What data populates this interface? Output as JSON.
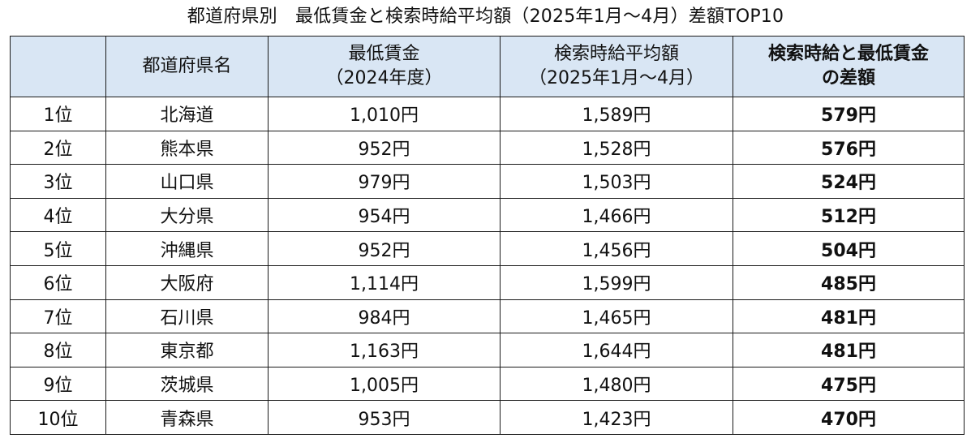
{
  "title": "都道府県別　最低賃金と検索時給平均額（2025年1月～4月）差額TOP10",
  "header": {
    "rank": "",
    "prefecture": "都道府県名",
    "min_wage_line1": "最低賃金",
    "min_wage_line2": "（2024年度）",
    "search_line1": "検索時給平均額",
    "search_line2": "（2025年1月～4月）",
    "diff_line1": "検索時給と最低賃金",
    "diff_line2": "の差額"
  },
  "rows": [
    {
      "rank": "1位",
      "prefecture": "北海道",
      "min_wage": "1,010円",
      "search_wage": "1,589円",
      "diff": "579円"
    },
    {
      "rank": "2位",
      "prefecture": "熊本県",
      "min_wage": "952円",
      "search_wage": "1,528円",
      "diff": "576円"
    },
    {
      "rank": "3位",
      "prefecture": "山口県",
      "min_wage": "979円",
      "search_wage": "1,503円",
      "diff": "524円"
    },
    {
      "rank": "4位",
      "prefecture": "大分県",
      "min_wage": "954円",
      "search_wage": "1,466円",
      "diff": "512円"
    },
    {
      "rank": "5位",
      "prefecture": "沖縄県",
      "min_wage": "952円",
      "search_wage": "1,456円",
      "diff": "504円"
    },
    {
      "rank": "6位",
      "prefecture": "大阪府",
      "min_wage": "1,114円",
      "search_wage": "1,599円",
      "diff": "485円"
    },
    {
      "rank": "7位",
      "prefecture": "石川県",
      "min_wage": "984円",
      "search_wage": "1,465円",
      "diff": "481円"
    },
    {
      "rank": "8位",
      "prefecture": "東京都",
      "min_wage": "1,163円",
      "search_wage": "1,644円",
      "diff": "481円"
    },
    {
      "rank": "9位",
      "prefecture": "茨城県",
      "min_wage": "1,005円",
      "search_wage": "1,480円",
      "diff": "475円"
    },
    {
      "rank": "10位",
      "prefecture": "青森県",
      "min_wage": "953円",
      "search_wage": "1,423円",
      "diff": "470円"
    }
  ],
  "colors": {
    "header_bg": "#d9e6f4",
    "border": "#1a1a1a"
  }
}
